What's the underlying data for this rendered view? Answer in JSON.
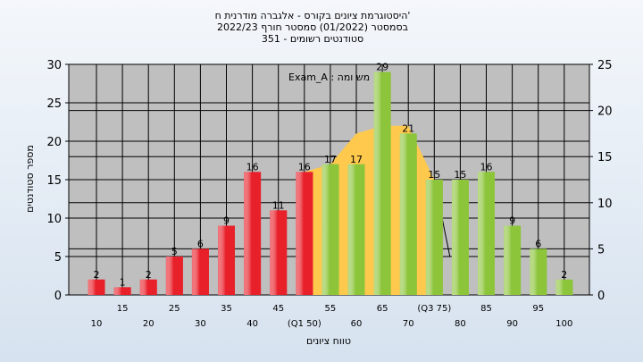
{
  "chart_data": {
    "type": "bar",
    "title_lines": [
      "היסטוגרמת ציונים בקורס - אלגברה מודרנית ח'",
      "בסמסטר  (01/2022)  סמסטר חורף 2022/23",
      "351 - סטודנטים רשומים"
    ],
    "legend_label": "Exam_A : מש ומה",
    "xlabel": "טווח ציונים",
    "ylabel": "מספר סטודנטים",
    "ylim": [
      0,
      30
    ],
    "y_ticks": [
      0,
      5,
      10,
      15,
      20,
      25,
      30
    ],
    "y2lim": [
      0,
      25
    ],
    "y2_ticks": [
      0,
      5,
      10,
      15,
      20,
      25
    ],
    "x_labels_upper": [
      "15",
      "25",
      "35",
      "45",
      "55",
      "65",
      "(Q3 75)",
      "85",
      "95"
    ],
    "x_labels_lower": [
      "10",
      "20",
      "30",
      "40",
      "(Q1 50)",
      "60",
      "70",
      "80",
      "90",
      "100"
    ],
    "categories": [
      10,
      15,
      20,
      25,
      30,
      35,
      40,
      45,
      50,
      55,
      60,
      65,
      70,
      75,
      80,
      85,
      90,
      95,
      100
    ],
    "values": [
      2,
      1,
      2,
      5,
      6,
      9,
      16,
      11,
      16,
      17,
      17,
      29,
      21,
      15,
      15,
      16,
      9,
      6,
      2
    ],
    "bar_colors_by_group": {
      "below_q1": "#e8202a",
      "above_q1": "#8cc43a"
    },
    "q1_index": 9,
    "band": {
      "color": "#ffc94d",
      "x": [
        50,
        55,
        60,
        65,
        70,
        75
      ],
      "upper": [
        16,
        17,
        21,
        22,
        22,
        15
      ],
      "lower": [
        0,
        0,
        0,
        0,
        0,
        0
      ],
      "tail": {
        "x": 78,
        "y": 5
      }
    }
  }
}
